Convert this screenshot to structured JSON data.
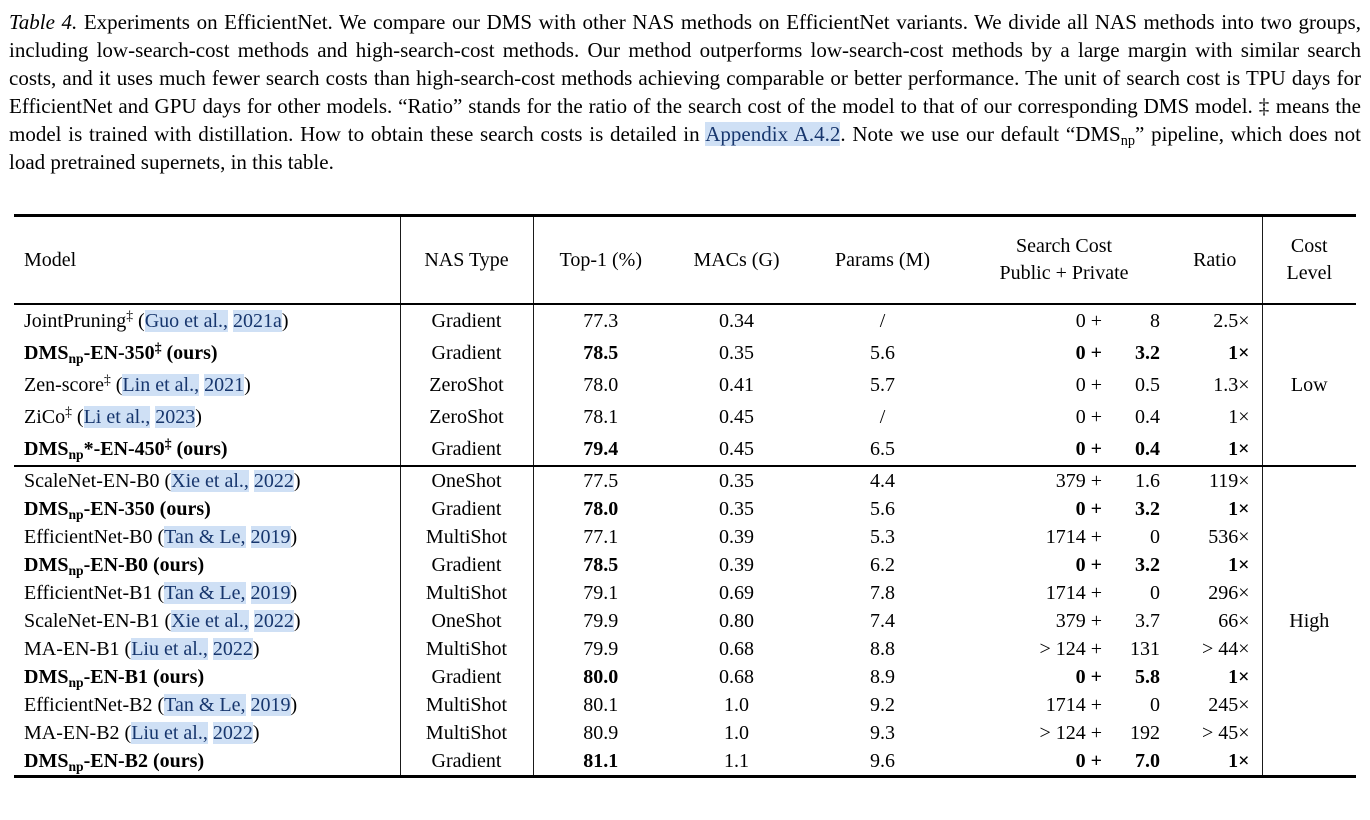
{
  "caption": {
    "segments": [
      {
        "t": "Table 4.",
        "s": "i"
      },
      {
        "t": " Experiments on EfficientNet. We compare our DMS with other NAS methods on EfficientNet variants. We divide all NAS methods into two groups, including low-search-cost methods and high-search-cost methods. Our method outperforms low-search-cost methods by a large margin with similar search costs, and it uses much fewer search costs than high-search-cost methods achieving comparable or better performance. The unit of search cost is TPU days for EfficientNet and GPU days for other models. “Ratio” stands for the ratio of the search cost of the model to that of our corresponding DMS model. ‡ means the model is trained with distillation. How to obtain these search costs is detailed in ",
        "s": ""
      },
      {
        "t": "Appendix A.4.2",
        "s": "link"
      },
      {
        "t": ". Note we use our default “DMS",
        "s": ""
      },
      {
        "t": "np",
        "s": "sub"
      },
      {
        "t": "” pipeline, which does not load pretrained supernets, in this table.",
        "s": ""
      }
    ]
  },
  "table": {
    "headers": {
      "model": "Model",
      "nas_type": "NAS Type",
      "top1": "Top-1 (%)",
      "macs": "MACs (G)",
      "params": "Params (M)",
      "search_cost_line1": "Search Cost",
      "search_cost_line2": "Public + Private",
      "ratio": "Ratio",
      "cost_level_line1": "Cost",
      "cost_level_line2": "Level"
    },
    "groups": [
      {
        "label": "Low",
        "rows": [
          {
            "model": [
              {
                "t": "JointPruning",
                "s": ""
              },
              {
                "t": "‡",
                "s": "sup"
              },
              {
                "t": " (",
                "s": ""
              },
              {
                "t": "Guo et al.,",
                "s": "cite"
              },
              {
                "t": " ",
                "s": ""
              },
              {
                "t": "2021a",
                "s": "cite"
              },
              {
                "t": ")",
                "s": ""
              }
            ],
            "ours": false,
            "nas": "Gradient",
            "top1": "77.3",
            "macs": "0.34",
            "params": "/",
            "pub": "0 +",
            "priv": "8",
            "ratio": "2.5×"
          },
          {
            "model": [
              {
                "t": "DMS",
                "s": ""
              },
              {
                "t": "np",
                "s": "sub"
              },
              {
                "t": "-EN-350",
                "s": ""
              },
              {
                "t": "‡",
                "s": "sup"
              },
              {
                "t": " (ours)",
                "s": ""
              }
            ],
            "ours": true,
            "nas": "Gradient",
            "top1": "78.5",
            "macs": "0.35",
            "params": "5.6",
            "pub": "0 +",
            "priv": "3.2",
            "ratio": "1×"
          },
          {
            "model": [
              {
                "t": "Zen-score",
                "s": ""
              },
              {
                "t": "‡",
                "s": "sup"
              },
              {
                "t": " (",
                "s": ""
              },
              {
                "t": "Lin et al.,",
                "s": "cite"
              },
              {
                "t": " ",
                "s": ""
              },
              {
                "t": "2021",
                "s": "cite"
              },
              {
                "t": ")",
                "s": ""
              }
            ],
            "ours": false,
            "nas": "ZeroShot",
            "top1": "78.0",
            "macs": "0.41",
            "params": "5.7",
            "pub": "0 +",
            "priv": "0.5",
            "ratio": "1.3×"
          },
          {
            "model": [
              {
                "t": "ZiCo",
                "s": ""
              },
              {
                "t": "‡",
                "s": "sup"
              },
              {
                "t": " (",
                "s": ""
              },
              {
                "t": "Li et al.,",
                "s": "cite"
              },
              {
                "t": " ",
                "s": ""
              },
              {
                "t": "2023",
                "s": "cite"
              },
              {
                "t": ")",
                "s": ""
              }
            ],
            "ours": false,
            "nas": "ZeroShot",
            "top1": "78.1",
            "macs": "0.45",
            "params": "/",
            "pub": "0 +",
            "priv": "0.4",
            "ratio": "1×"
          },
          {
            "model": [
              {
                "t": "DMS",
                "s": ""
              },
              {
                "t": "np",
                "s": "sub"
              },
              {
                "t": "*-EN-450",
                "s": ""
              },
              {
                "t": "‡",
                "s": "sup"
              },
              {
                "t": " (ours)",
                "s": ""
              }
            ],
            "ours": true,
            "nas": "Gradient",
            "top1": "79.4",
            "macs": "0.45",
            "params": "6.5",
            "pub": "0 +",
            "priv": "0.4",
            "ratio": "1×"
          }
        ]
      },
      {
        "label": "High",
        "rows": [
          {
            "model": [
              {
                "t": "ScaleNet-EN-B0 (",
                "s": ""
              },
              {
                "t": "Xie et al.,",
                "s": "cite"
              },
              {
                "t": " ",
                "s": ""
              },
              {
                "t": "2022",
                "s": "cite"
              },
              {
                "t": ")",
                "s": ""
              }
            ],
            "ours": false,
            "nas": "OneShot",
            "top1": "77.5",
            "macs": "0.35",
            "params": "4.4",
            "pub": "379 +",
            "priv": "1.6",
            "ratio": "119×"
          },
          {
            "model": [
              {
                "t": "DMS",
                "s": ""
              },
              {
                "t": "np",
                "s": "sub"
              },
              {
                "t": "-EN-350 (ours)",
                "s": ""
              }
            ],
            "ours": true,
            "nas": "Gradient",
            "top1": "78.0",
            "macs": "0.35",
            "params": "5.6",
            "pub": "0 +",
            "priv": "3.2",
            "ratio": "1×"
          },
          {
            "model": [
              {
                "t": "EfficientNet-B0 (",
                "s": ""
              },
              {
                "t": "Tan & Le,",
                "s": "cite"
              },
              {
                "t": " ",
                "s": ""
              },
              {
                "t": "2019",
                "s": "cite"
              },
              {
                "t": ")",
                "s": ""
              }
            ],
            "ours": false,
            "nas": "MultiShot",
            "top1": "77.1",
            "macs": "0.39",
            "params": "5.3",
            "pub": "1714 +",
            "priv": "0",
            "ratio": "536×"
          },
          {
            "model": [
              {
                "t": "DMS",
                "s": ""
              },
              {
                "t": "np",
                "s": "sub"
              },
              {
                "t": "-EN-B0 (ours)",
                "s": ""
              }
            ],
            "ours": true,
            "nas": "Gradient",
            "top1": "78.5",
            "macs": "0.39",
            "params": "6.2",
            "pub": "0 +",
            "priv": "3.2",
            "ratio": "1×"
          },
          {
            "model": [
              {
                "t": "EfficientNet-B1 (",
                "s": ""
              },
              {
                "t": "Tan & Le,",
                "s": "cite"
              },
              {
                "t": " ",
                "s": ""
              },
              {
                "t": "2019",
                "s": "cite"
              },
              {
                "t": ")",
                "s": ""
              }
            ],
            "ours": false,
            "nas": "MultiShot",
            "top1": "79.1",
            "macs": "0.69",
            "params": "7.8",
            "pub": "1714 +",
            "priv": "0",
            "ratio": "296×"
          },
          {
            "model": [
              {
                "t": "ScaleNet-EN-B1 (",
                "s": ""
              },
              {
                "t": "Xie et al.,",
                "s": "cite"
              },
              {
                "t": " ",
                "s": ""
              },
              {
                "t": "2022",
                "s": "cite"
              },
              {
                "t": ")",
                "s": ""
              }
            ],
            "ours": false,
            "nas": "OneShot",
            "top1": "79.9",
            "macs": "0.80",
            "params": "7.4",
            "pub": "379 +",
            "priv": "3.7",
            "ratio": "66×"
          },
          {
            "model": [
              {
                "t": "MA-EN-B1 (",
                "s": ""
              },
              {
                "t": "Liu et al.,",
                "s": "cite"
              },
              {
                "t": " ",
                "s": ""
              },
              {
                "t": "2022",
                "s": "cite"
              },
              {
                "t": ")",
                "s": ""
              }
            ],
            "ours": false,
            "nas": "MultiShot",
            "top1": "79.9",
            "macs": "0.68",
            "params": "8.8",
            "pub": "> 124 +",
            "priv": "131",
            "ratio": "> 44×"
          },
          {
            "model": [
              {
                "t": "DMS",
                "s": ""
              },
              {
                "t": "np",
                "s": "sub"
              },
              {
                "t": "-EN-B1 (ours)",
                "s": ""
              }
            ],
            "ours": true,
            "nas": "Gradient",
            "top1": "80.0",
            "macs": "0.68",
            "params": "8.9",
            "pub": "0 +",
            "priv": "5.8",
            "ratio": "1×"
          },
          {
            "model": [
              {
                "t": "EfficientNet-B2 (",
                "s": ""
              },
              {
                "t": "Tan & Le,",
                "s": "cite"
              },
              {
                "t": " ",
                "s": ""
              },
              {
                "t": "2019",
                "s": "cite"
              },
              {
                "t": ")",
                "s": ""
              }
            ],
            "ours": false,
            "nas": "MultiShot",
            "top1": "80.1",
            "macs": "1.0",
            "params": "9.2",
            "pub": "1714 +",
            "priv": "0",
            "ratio": "245×"
          },
          {
            "model": [
              {
                "t": "MA-EN-B2 (",
                "s": ""
              },
              {
                "t": "Liu et al.,",
                "s": "cite"
              },
              {
                "t": " ",
                "s": ""
              },
              {
                "t": "2022",
                "s": "cite"
              },
              {
                "t": ")",
                "s": ""
              }
            ],
            "ours": false,
            "nas": "MultiShot",
            "top1": "80.9",
            "macs": "1.0",
            "params": "9.3",
            "pub": "> 124 +",
            "priv": "192",
            "ratio": "> 45×"
          },
          {
            "model": [
              {
                "t": "DMS",
                "s": ""
              },
              {
                "t": "np",
                "s": "sub"
              },
              {
                "t": "-EN-B2 (ours)",
                "s": ""
              }
            ],
            "ours": true,
            "nas": "Gradient",
            "top1": "81.1",
            "macs": "1.1",
            "params": "9.6",
            "pub": "0 +",
            "priv": "7.0",
            "ratio": "1×"
          }
        ]
      }
    ]
  },
  "colors": {
    "link_text": "#17366d",
    "link_highlight": "#cfe0f5",
    "rule": "#000000",
    "background": "#ffffff"
  }
}
